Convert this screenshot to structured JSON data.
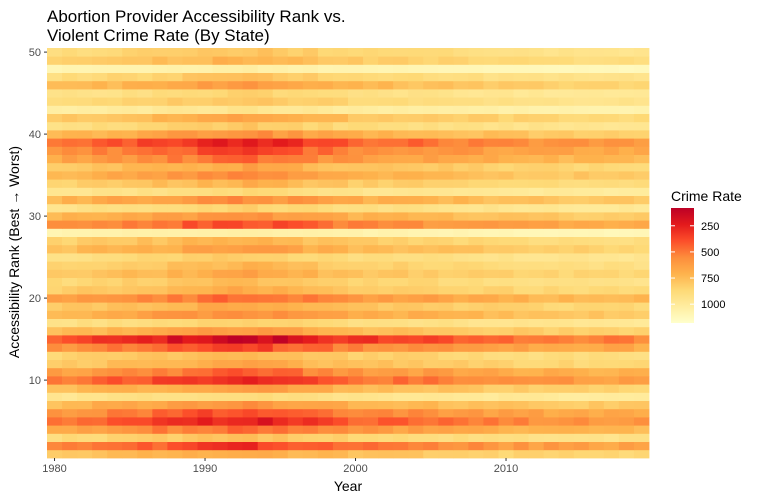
{
  "chart_data": {
    "type": "heatmap",
    "title_lines": [
      "Abortion Provider Accessibility Rank vs.",
      "Violent Crime Rate (By State)"
    ],
    "xlabel": "Year",
    "ylabel": "Accessibility Rank (Best → Worst)",
    "x_years": [
      1980,
      2019
    ],
    "y_ranks": [
      1,
      50
    ],
    "xlim": [
      1979.5,
      2019.5
    ],
    "ylim": [
      0.5,
      50.5
    ],
    "x_ticks": [
      1980,
      1990,
      2000,
      2010
    ],
    "x_tick_labels": [
      "1980",
      "1990",
      "2000",
      "2010"
    ],
    "y_ticks": [
      10,
      20,
      30,
      40,
      50
    ],
    "y_tick_labels": [
      "10",
      "20",
      "30",
      "40",
      "50"
    ],
    "grid": false,
    "legend": {
      "title": "Crime Rate",
      "placement": "right",
      "ticks": [
        250,
        500,
        750,
        1000
      ],
      "tick_labels": [
        "250",
        "500",
        "750",
        "1000"
      ],
      "range": [
        80,
        1180
      ],
      "low_color": "#ffffcc",
      "mid_colors": [
        "#ffeda0",
        "#fed976",
        "#feb24c",
        "#fd8d3c",
        "#fc4e2a",
        "#e31a1c"
      ],
      "high_color": "#bd0026"
    },
    "row_base_values": [
      [
        1,
        520
      ],
      [
        2,
        820
      ],
      [
        3,
        430
      ],
      [
        4,
        710
      ],
      [
        5,
        900
      ],
      [
        6,
        780
      ],
      [
        7,
        600
      ],
      [
        8,
        330
      ],
      [
        9,
        560
      ],
      [
        10,
        860
      ],
      [
        11,
        720
      ],
      [
        12,
        520
      ],
      [
        13,
        470
      ],
      [
        14,
        780
      ],
      [
        15,
        1000
      ],
      [
        16,
        560
      ],
      [
        17,
        380
      ],
      [
        18,
        620
      ],
      [
        19,
        520
      ],
      [
        20,
        700
      ],
      [
        21,
        510
      ],
      [
        22,
        440
      ],
      [
        23,
        520
      ],
      [
        24,
        460
      ],
      [
        25,
        390
      ],
      [
        26,
        560
      ],
      [
        27,
        480
      ],
      [
        28,
        200
      ],
      [
        29,
        770
      ],
      [
        30,
        600
      ],
      [
        31,
        370
      ],
      [
        32,
        620
      ],
      [
        33,
        330
      ],
      [
        34,
        480
      ],
      [
        35,
        610
      ],
      [
        36,
        520
      ],
      [
        37,
        690
      ],
      [
        38,
        780
      ],
      [
        39,
        880
      ],
      [
        40,
        600
      ],
      [
        41,
        400
      ],
      [
        42,
        520
      ],
      [
        43,
        260
      ],
      [
        44,
        420
      ],
      [
        45,
        360
      ],
      [
        46,
        560
      ],
      [
        47,
        420
      ],
      [
        48,
        190
      ],
      [
        49,
        480
      ],
      [
        50,
        420
      ]
    ],
    "year_trend": [
      [
        1980,
        0.86
      ],
      [
        1985,
        0.97
      ],
      [
        1990,
        1.1
      ],
      [
        1993,
        1.16
      ],
      [
        1997,
        1.03
      ],
      [
        2000,
        0.93
      ],
      [
        2005,
        0.88
      ],
      [
        2010,
        0.8
      ],
      [
        2015,
        0.76
      ],
      [
        2019,
        0.74
      ]
    ]
  }
}
